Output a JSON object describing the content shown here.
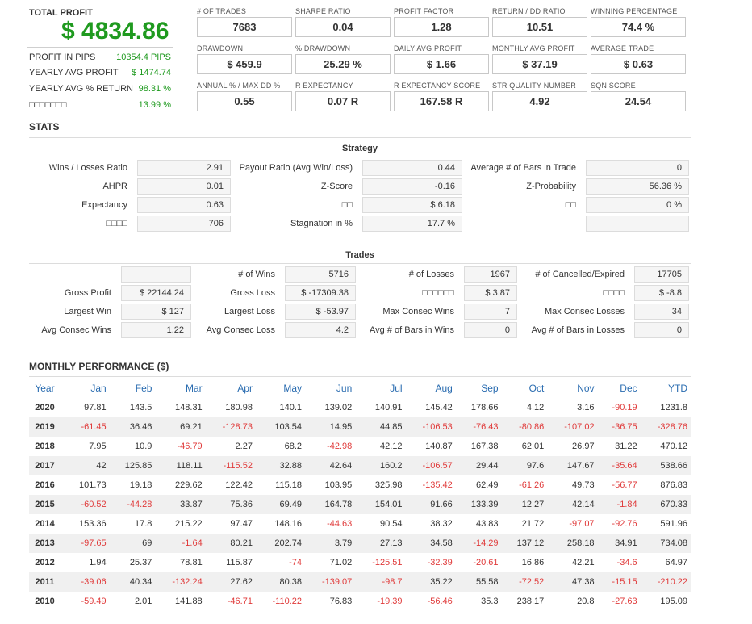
{
  "summary": {
    "total_profit_label": "TOTAL PROFIT",
    "total_profit_value": "$ 4834.86",
    "rows": [
      {
        "label": "PROFIT IN PIPS",
        "value": "10354.4 PIPS"
      },
      {
        "label": "YEARLY AVG PROFIT",
        "value": "$ 1474.74"
      },
      {
        "label": "YEARLY AVG % RETURN",
        "value": "98.31 %"
      },
      {
        "label": "□□□□□□□",
        "value": "13.99 %"
      }
    ]
  },
  "metrics": [
    {
      "label": "# OF TRADES",
      "value": "7683"
    },
    {
      "label": "SHARPE RATIO",
      "value": "0.04"
    },
    {
      "label": "PROFIT FACTOR",
      "value": "1.28"
    },
    {
      "label": "RETURN / DD RATIO",
      "value": "10.51"
    },
    {
      "label": "WINNING PERCENTAGE",
      "value": "74.4 %"
    },
    {
      "label": "DRAWDOWN",
      "value": "$ 459.9"
    },
    {
      "label": "% DRAWDOWN",
      "value": "25.29 %"
    },
    {
      "label": "DAILY AVG PROFIT",
      "value": "$ 1.66"
    },
    {
      "label": "MONTHLY AVG PROFIT",
      "value": "$ 37.19"
    },
    {
      "label": "AVERAGE TRADE",
      "value": "$ 0.63"
    },
    {
      "label": "ANNUAL % / MAX DD %",
      "value": "0.55"
    },
    {
      "label": "R EXPECTANCY",
      "value": "0.07 R"
    },
    {
      "label": "R EXPECTANCY SCORE",
      "value": "167.58 R"
    },
    {
      "label": "STR QUALITY NUMBER",
      "value": "4.92"
    },
    {
      "label": "SQN SCORE",
      "value": "24.54"
    }
  ],
  "stats": {
    "title": "STATS",
    "strategy_title": "Strategy",
    "strategy": [
      [
        {
          "label": "Wins / Losses Ratio",
          "value": "2.91"
        },
        {
          "label": "Payout Ratio (Avg Win/Loss)",
          "value": "0.44"
        },
        {
          "label": "Average # of Bars in Trade",
          "value": "0"
        }
      ],
      [
        {
          "label": "AHPR",
          "value": "0.01"
        },
        {
          "label": "Z-Score",
          "value": "-0.16"
        },
        {
          "label": "Z-Probability",
          "value": "56.36 %"
        }
      ],
      [
        {
          "label": "Expectancy",
          "value": "0.63"
        },
        {
          "label": "□□",
          "value": "$ 6.18"
        },
        {
          "label": "□□",
          "value": "0 %"
        }
      ],
      [
        {
          "label": "□□□□",
          "value": "706"
        },
        {
          "label": "Stagnation in %",
          "value": "17.7 %"
        },
        {
          "label": "",
          "value": ""
        }
      ]
    ],
    "trades_title": "Trades",
    "trades": [
      [
        {
          "label": "",
          "value": ""
        },
        {
          "label": "# of Wins",
          "value": "5716"
        },
        {
          "label": "# of Losses",
          "value": "1967"
        },
        {
          "label": "# of Cancelled/Expired",
          "value": "17705"
        }
      ],
      [
        {
          "label": "Gross Profit",
          "value": "$ 22144.24"
        },
        {
          "label": "Gross Loss",
          "value": "$ -17309.38"
        },
        {
          "label": "□□□□□□",
          "value": "$ 3.87"
        },
        {
          "label": "□□□□",
          "value": "$ -8.8"
        }
      ],
      [
        {
          "label": "Largest Win",
          "value": "$ 127"
        },
        {
          "label": "Largest Loss",
          "value": "$ -53.97"
        },
        {
          "label": "Max Consec Wins",
          "value": "7"
        },
        {
          "label": "Max Consec Losses",
          "value": "34"
        }
      ],
      [
        {
          "label": "Avg Consec Wins",
          "value": "1.22"
        },
        {
          "label": "Avg Consec Loss",
          "value": "4.2"
        },
        {
          "label": "Avg # of Bars in Wins",
          "value": "0"
        },
        {
          "label": "Avg # of Bars in Losses",
          "value": "0"
        }
      ]
    ]
  },
  "monthly": {
    "title": "MONTHLY PERFORMANCE ($)",
    "headers": [
      "Year",
      "Jan",
      "Feb",
      "Mar",
      "Apr",
      "May",
      "Jun",
      "Jul",
      "Aug",
      "Sep",
      "Oct",
      "Nov",
      "Dec",
      "YTD"
    ],
    "rows": [
      [
        "2020",
        "97.81",
        "143.5",
        "148.31",
        "180.98",
        "140.1",
        "139.02",
        "140.91",
        "145.42",
        "178.66",
        "4.12",
        "3.16",
        "-90.19",
        "1231.8"
      ],
      [
        "2019",
        "-61.45",
        "36.46",
        "69.21",
        "-128.73",
        "103.54",
        "14.95",
        "44.85",
        "-106.53",
        "-76.43",
        "-80.86",
        "-107.02",
        "-36.75",
        "-328.76"
      ],
      [
        "2018",
        "7.95",
        "10.9",
        "-46.79",
        "2.27",
        "68.2",
        "-42.98",
        "42.12",
        "140.87",
        "167.38",
        "62.01",
        "26.97",
        "31.22",
        "470.12"
      ],
      [
        "2017",
        "42",
        "125.85",
        "118.11",
        "-115.52",
        "32.88",
        "42.64",
        "160.2",
        "-106.57",
        "29.44",
        "97.6",
        "147.67",
        "-35.64",
        "538.66"
      ],
      [
        "2016",
        "101.73",
        "19.18",
        "229.62",
        "122.42",
        "115.18",
        "103.95",
        "325.98",
        "-135.42",
        "62.49",
        "-61.26",
        "49.73",
        "-56.77",
        "876.83"
      ],
      [
        "2015",
        "-60.52",
        "-44.28",
        "33.87",
        "75.36",
        "69.49",
        "164.78",
        "154.01",
        "91.66",
        "133.39",
        "12.27",
        "42.14",
        "-1.84",
        "670.33"
      ],
      [
        "2014",
        "153.36",
        "17.8",
        "215.22",
        "97.47",
        "148.16",
        "-44.63",
        "90.54",
        "38.32",
        "43.83",
        "21.72",
        "-97.07",
        "-92.76",
        "591.96"
      ],
      [
        "2013",
        "-97.65",
        "69",
        "-1.64",
        "80.21",
        "202.74",
        "3.79",
        "27.13",
        "34.58",
        "-14.29",
        "137.12",
        "258.18",
        "34.91",
        "734.08"
      ],
      [
        "2012",
        "1.94",
        "25.37",
        "78.81",
        "115.87",
        "-74",
        "71.02",
        "-125.51",
        "-32.39",
        "-20.61",
        "16.86",
        "42.21",
        "-34.6",
        "64.97"
      ],
      [
        "2011",
        "-39.06",
        "40.34",
        "-132.24",
        "27.62",
        "80.38",
        "-139.07",
        "-98.7",
        "35.22",
        "55.58",
        "-72.52",
        "47.38",
        "-15.15",
        "-210.22"
      ],
      [
        "2010",
        "-59.49",
        "2.01",
        "141.88",
        "-46.71",
        "-110.22",
        "76.83",
        "-19.39",
        "-56.46",
        "35.3",
        "238.17",
        "20.8",
        "-27.63",
        "195.09"
      ]
    ]
  }
}
